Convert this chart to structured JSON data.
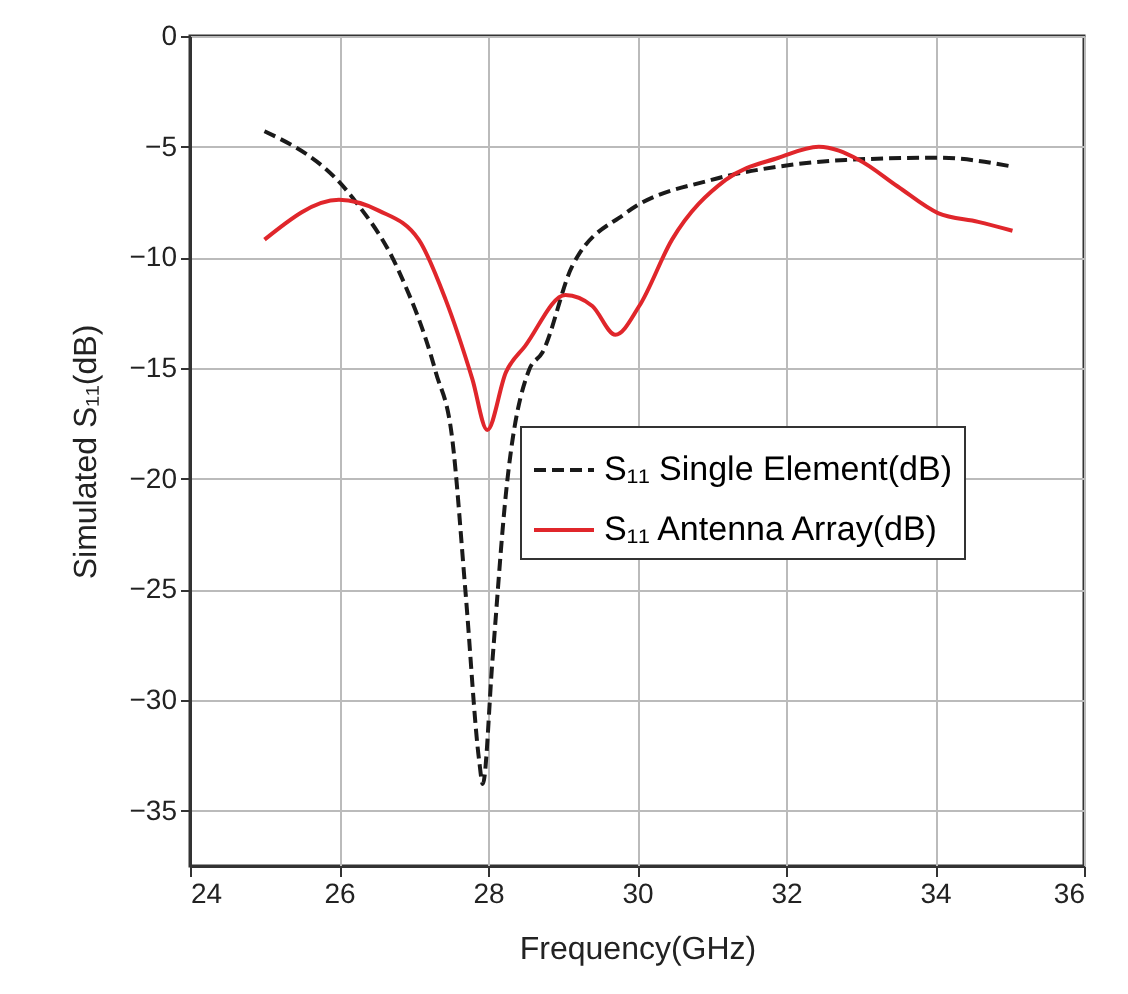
{
  "chart_data": {
    "type": "line",
    "xlabel": "Frequency(GHz)",
    "ylabel": "Simulated S₁₁(dB)",
    "xlim": [
      24,
      36
    ],
    "xticks": [
      24,
      26,
      28,
      30,
      32,
      34,
      36
    ],
    "ylim": [
      -37.5,
      0
    ],
    "yticks": [
      0,
      -5,
      -10,
      -15,
      -20,
      -25,
      -30,
      -35
    ],
    "grid": true,
    "legend": "right",
    "marker": "none",
    "series": [
      {
        "name": "S₁₁ Single Element(dB)",
        "color": "#1a1a1a",
        "line_style": "dashed",
        "x": [
          25,
          26.18,
          26.8,
          27.3,
          27.52,
          27.7,
          27.88,
          27.93,
          28.06,
          28.24,
          28.55,
          28.73,
          29.13,
          29.85,
          31.0,
          31.9,
          32.8,
          34.05,
          35.04
        ],
        "values": [
          -4.3,
          -7.3,
          -10.6,
          -15.2,
          -18.2,
          -25.2,
          -32.7,
          -33.8,
          -28.2,
          -20.7,
          -15.1,
          -14.3,
          -10.4,
          -8.0,
          -6.5,
          -5.9,
          -5.6,
          -5.5,
          -5.9
        ]
      },
      {
        "name": "S₁₁ Antenna Array(dB)",
        "color": "#e0262b",
        "line_style": "solid",
        "x": [
          25,
          26.0,
          26.54,
          27.07,
          27.43,
          27.79,
          27.99,
          28.24,
          28.5,
          29.04,
          29.4,
          29.71,
          30.03,
          30.47,
          31.19,
          31.9,
          32.44,
          32.98,
          33.5,
          34.04,
          34.58,
          35.04
        ],
        "values": [
          -9.2,
          -7.4,
          -7.9,
          -9.2,
          -11.9,
          -15.5,
          -17.8,
          -15.2,
          -14.0,
          -11.7,
          -12.2,
          -13.5,
          -12.2,
          -9.2,
          -6.5,
          -5.5,
          -5.0,
          -5.6,
          -6.8,
          -8.0,
          -8.4,
          -8.8
        ]
      }
    ]
  }
}
